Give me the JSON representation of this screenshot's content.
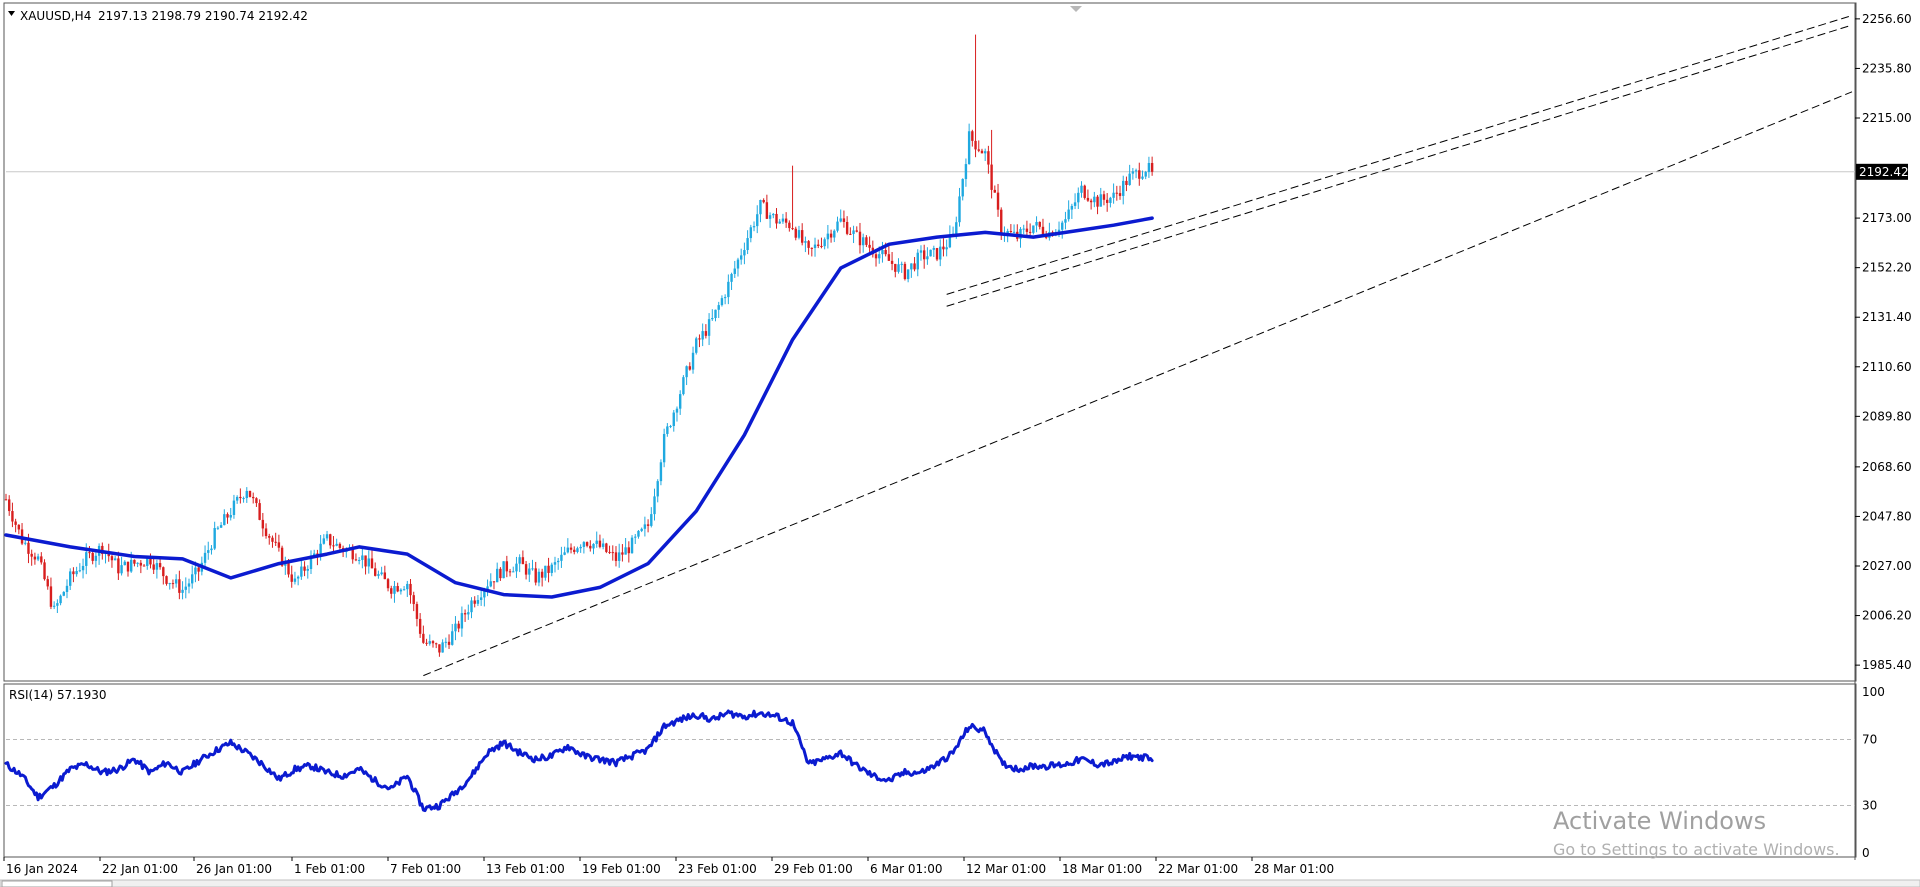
{
  "header": {
    "symbol": "XAUUSD,H4",
    "ohlc": "2197.13 2198.79 2190.74 2192.42"
  },
  "rsi_header": "RSI(14) 57.1930",
  "watermark": {
    "line1": "Activate Windows",
    "line2": "Go to Settings to activate Windows."
  },
  "colors": {
    "bull": "#1fa9e0",
    "bear": "#d81e1e",
    "ma": "#0b1bd0",
    "rsi": "#0b1bd0",
    "trend": "#000000",
    "grid_dash": "#b8b8b8"
  },
  "chart_data": [
    {
      "type": "candlestick",
      "title": "XAUUSD,H4",
      "x_ticks": [
        "16 Jan 2024",
        "22 Jan 01:00",
        "26 Jan 01:00",
        "1 Feb 01:00",
        "7 Feb 01:00",
        "13 Feb 01:00",
        "19 Feb 01:00",
        "23 Feb 01:00",
        "29 Feb 01:00",
        "6 Mar 01:00",
        "12 Mar 01:00",
        "18 Mar 01:00",
        "22 Mar 01:00",
        "28 Mar 01:00"
      ],
      "y_ticks": [
        "2256.60",
        "2235.80",
        "2215.00",
        "2192.42",
        "2173.00",
        "2152.20",
        "2131.40",
        "2110.60",
        "2089.80",
        "2068.60",
        "2047.80",
        "2027.00",
        "2006.20",
        "1985.40"
      ],
      "ylim": [
        1980.0,
        2262.0
      ],
      "last_price": 2192.42,
      "ohlc_last": {
        "open": 2197.13,
        "high": 2198.79,
        "low": 2190.74,
        "close": 2192.42
      },
      "price_path": [
        [
          0,
          2055
        ],
        [
          5,
          2038
        ],
        [
          10,
          2030
        ],
        [
          15,
          2008
        ],
        [
          20,
          2022
        ],
        [
          25,
          2030
        ],
        [
          30,
          2035
        ],
        [
          35,
          2026
        ],
        [
          40,
          2028
        ],
        [
          45,
          2030
        ],
        [
          50,
          2022
        ],
        [
          55,
          2017
        ],
        [
          60,
          2025
        ],
        [
          65,
          2040
        ],
        [
          70,
          2050
        ],
        [
          75,
          2060
        ],
        [
          80,
          2045
        ],
        [
          85,
          2032
        ],
        [
          90,
          2020
        ],
        [
          95,
          2030
        ],
        [
          100,
          2038
        ],
        [
          105,
          2034
        ],
        [
          110,
          2032
        ],
        [
          115,
          2024
        ],
        [
          120,
          2018
        ],
        [
          125,
          2020
        ],
        [
          130,
          1995
        ],
        [
          135,
          1992
        ],
        [
          140,
          2000
        ],
        [
          145,
          2012
        ],
        [
          150,
          2020
        ],
        [
          155,
          2026
        ],
        [
          160,
          2028
        ],
        [
          165,
          2022
        ],
        [
          170,
          2026
        ],
        [
          175,
          2033
        ],
        [
          180,
          2038
        ],
        [
          185,
          2035
        ],
        [
          190,
          2030
        ],
        [
          195,
          2036
        ],
        [
          200,
          2044
        ],
        [
          205,
          2080
        ],
        [
          210,
          2100
        ],
        [
          215,
          2120
        ],
        [
          220,
          2130
        ],
        [
          225,
          2145
        ],
        [
          230,
          2162
        ],
        [
          235,
          2178
        ],
        [
          240,
          2172
        ],
        [
          245,
          2170
        ],
        [
          250,
          2158
        ],
        [
          255,
          2165
        ],
        [
          260,
          2172
        ],
        [
          265,
          2165
        ],
        [
          270,
          2160
        ],
        [
          275,
          2155
        ],
        [
          280,
          2150
        ],
        [
          285,
          2157
        ],
        [
          290,
          2158
        ],
        [
          295,
          2165
        ],
        [
          300,
          2207
        ],
        [
          305,
          2200
        ],
        [
          310,
          2168
        ],
        [
          315,
          2165
        ],
        [
          320,
          2170
        ],
        [
          325,
          2167
        ],
        [
          330,
          2172
        ],
        [
          335,
          2185
        ],
        [
          340,
          2180
        ],
        [
          345,
          2182
        ],
        [
          350,
          2190
        ],
        [
          355,
          2194
        ],
        [
          357,
          2192.42
        ]
      ],
      "spikes": [
        [
          302,
          2250
        ],
        [
          307,
          2210
        ],
        [
          245,
          2195
        ]
      ],
      "ma_path": [
        [
          0,
          2040
        ],
        [
          20,
          2035
        ],
        [
          40,
          2031
        ],
        [
          55,
          2030
        ],
        [
          70,
          2022
        ],
        [
          85,
          2028
        ],
        [
          100,
          2032
        ],
        [
          110,
          2035
        ],
        [
          125,
          2032
        ],
        [
          140,
          2020
        ],
        [
          155,
          2015
        ],
        [
          170,
          2014
        ],
        [
          185,
          2018
        ],
        [
          200,
          2028
        ],
        [
          215,
          2050
        ],
        [
          230,
          2082
        ],
        [
          245,
          2122
        ],
        [
          260,
          2152
        ],
        [
          275,
          2162
        ],
        [
          290,
          2165
        ],
        [
          305,
          2167
        ],
        [
          320,
          2165
        ],
        [
          335,
          2168
        ],
        [
          345,
          2170
        ],
        [
          357,
          2173
        ]
      ],
      "trend_lines": [
        {
          "from": [
            130,
            1981
          ],
          "to": [
            575,
            2226
          ]
        },
        {
          "from": [
            293,
            2141
          ],
          "to": [
            575,
            2258
          ]
        },
        {
          "from": [
            293,
            2136
          ],
          "to": [
            575,
            2254
          ]
        }
      ],
      "x_range": [
        0,
        575
      ]
    },
    {
      "type": "line",
      "title": "RSI(14) 57.1930",
      "y_ticks": [
        "100",
        "70",
        "30",
        "0"
      ],
      "ylim": [
        0,
        100
      ],
      "levels": [
        30,
        70
      ],
      "series": [
        {
          "values": [
            [
              0,
              55
            ],
            [
              5,
              48
            ],
            [
              10,
              35
            ],
            [
              15,
              42
            ],
            [
              20,
              52
            ],
            [
              25,
              55
            ],
            [
              30,
              50
            ],
            [
              35,
              52
            ],
            [
              40,
              58
            ],
            [
              45,
              50
            ],
            [
              50,
              56
            ],
            [
              55,
              50
            ],
            [
              60,
              57
            ],
            [
              65,
              63
            ],
            [
              70,
              68
            ],
            [
              75,
              62
            ],
            [
              80,
              55
            ],
            [
              85,
              46
            ],
            [
              90,
              52
            ],
            [
              95,
              54
            ],
            [
              100,
              50
            ],
            [
              105,
              48
            ],
            [
              110,
              52
            ],
            [
              115,
              45
            ],
            [
              120,
              40
            ],
            [
              125,
              48
            ],
            [
              130,
              28
            ],
            [
              135,
              30
            ],
            [
              140,
              38
            ],
            [
              145,
              48
            ],
            [
              150,
              62
            ],
            [
              155,
              68
            ],
            [
              160,
              62
            ],
            [
              165,
              58
            ],
            [
              170,
              60
            ],
            [
              175,
              66
            ],
            [
              180,
              60
            ],
            [
              185,
              58
            ],
            [
              190,
              56
            ],
            [
              195,
              60
            ],
            [
              200,
              64
            ],
            [
              205,
              78
            ],
            [
              210,
              82
            ],
            [
              215,
              85
            ],
            [
              220,
              82
            ],
            [
              225,
              86
            ],
            [
              230,
              84
            ],
            [
              235,
              86
            ],
            [
              240,
              84
            ],
            [
              245,
              80
            ],
            [
              250,
              55
            ],
            [
              255,
              58
            ],
            [
              260,
              62
            ],
            [
              265,
              54
            ],
            [
              270,
              48
            ],
            [
              275,
              45
            ],
            [
              280,
              50
            ],
            [
              285,
              50
            ],
            [
              290,
              55
            ],
            [
              295,
              62
            ],
            [
              300,
              78
            ],
            [
              305,
              75
            ],
            [
              310,
              56
            ],
            [
              315,
              52
            ],
            [
              320,
              54
            ],
            [
              325,
              54
            ],
            [
              330,
              55
            ],
            [
              335,
              58
            ],
            [
              340,
              55
            ],
            [
              345,
              56
            ],
            [
              350,
              60
            ],
            [
              355,
              59
            ],
            [
              357,
              57.19
            ]
          ]
        }
      ]
    }
  ]
}
